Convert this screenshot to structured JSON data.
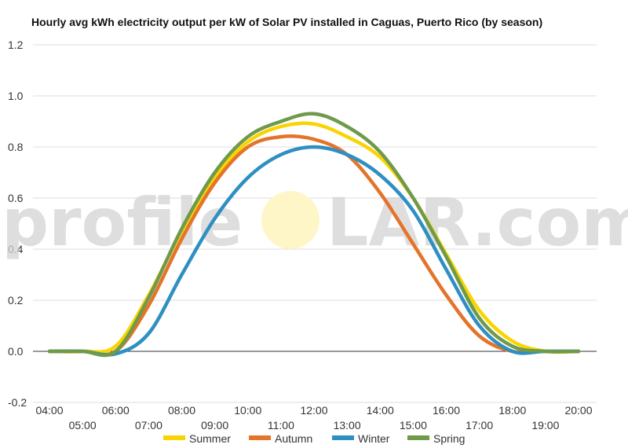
{
  "chart_data": {
    "type": "line",
    "title": "Hourly avg kWh electricity output per kW of Solar PV installed in Caguas, Puerto Rico (by season)",
    "xlabel": "",
    "ylabel": "",
    "ylim": [
      -0.2,
      1.2
    ],
    "yticks": [
      "-0.2",
      "0.0",
      "0.2",
      "0.4",
      "0.6",
      "0.8",
      "1.0",
      "1.2"
    ],
    "x": [
      "04:00",
      "05:00",
      "06:00",
      "07:00",
      "08:00",
      "09:00",
      "10:00",
      "11:00",
      "12:00",
      "13:00",
      "14:00",
      "15:00",
      "16:00",
      "17:00",
      "18:00",
      "19:00",
      "20:00"
    ],
    "grid": true,
    "legend": "bottom",
    "series": [
      {
        "name": "Summer",
        "color": "#f9d400",
        "values": [
          0.0,
          0.0,
          0.02,
          0.22,
          0.47,
          0.68,
          0.82,
          0.88,
          0.89,
          0.84,
          0.76,
          0.6,
          0.38,
          0.16,
          0.04,
          0.0,
          0.0
        ]
      },
      {
        "name": "Autumn",
        "color": "#e4742a",
        "values": [
          0.0,
          0.0,
          0.0,
          0.18,
          0.44,
          0.66,
          0.8,
          0.84,
          0.83,
          0.77,
          0.62,
          0.42,
          0.22,
          0.06,
          0.0,
          0.0,
          0.0
        ]
      },
      {
        "name": "Winter",
        "color": "#2e8fc2",
        "values": [
          0.0,
          0.0,
          -0.01,
          0.07,
          0.3,
          0.52,
          0.68,
          0.77,
          0.8,
          0.77,
          0.69,
          0.55,
          0.32,
          0.1,
          0.0,
          0.0,
          0.0
        ]
      },
      {
        "name": "Spring",
        "color": "#6f9a4c",
        "values": [
          0.0,
          0.0,
          0.0,
          0.21,
          0.48,
          0.7,
          0.84,
          0.9,
          0.93,
          0.88,
          0.78,
          0.6,
          0.37,
          0.13,
          0.02,
          0.0,
          0.0
        ]
      }
    ]
  },
  "watermark": {
    "prefix": "profile",
    "suffix": "LAR.com",
    "sun_color": "#fff6c8"
  }
}
